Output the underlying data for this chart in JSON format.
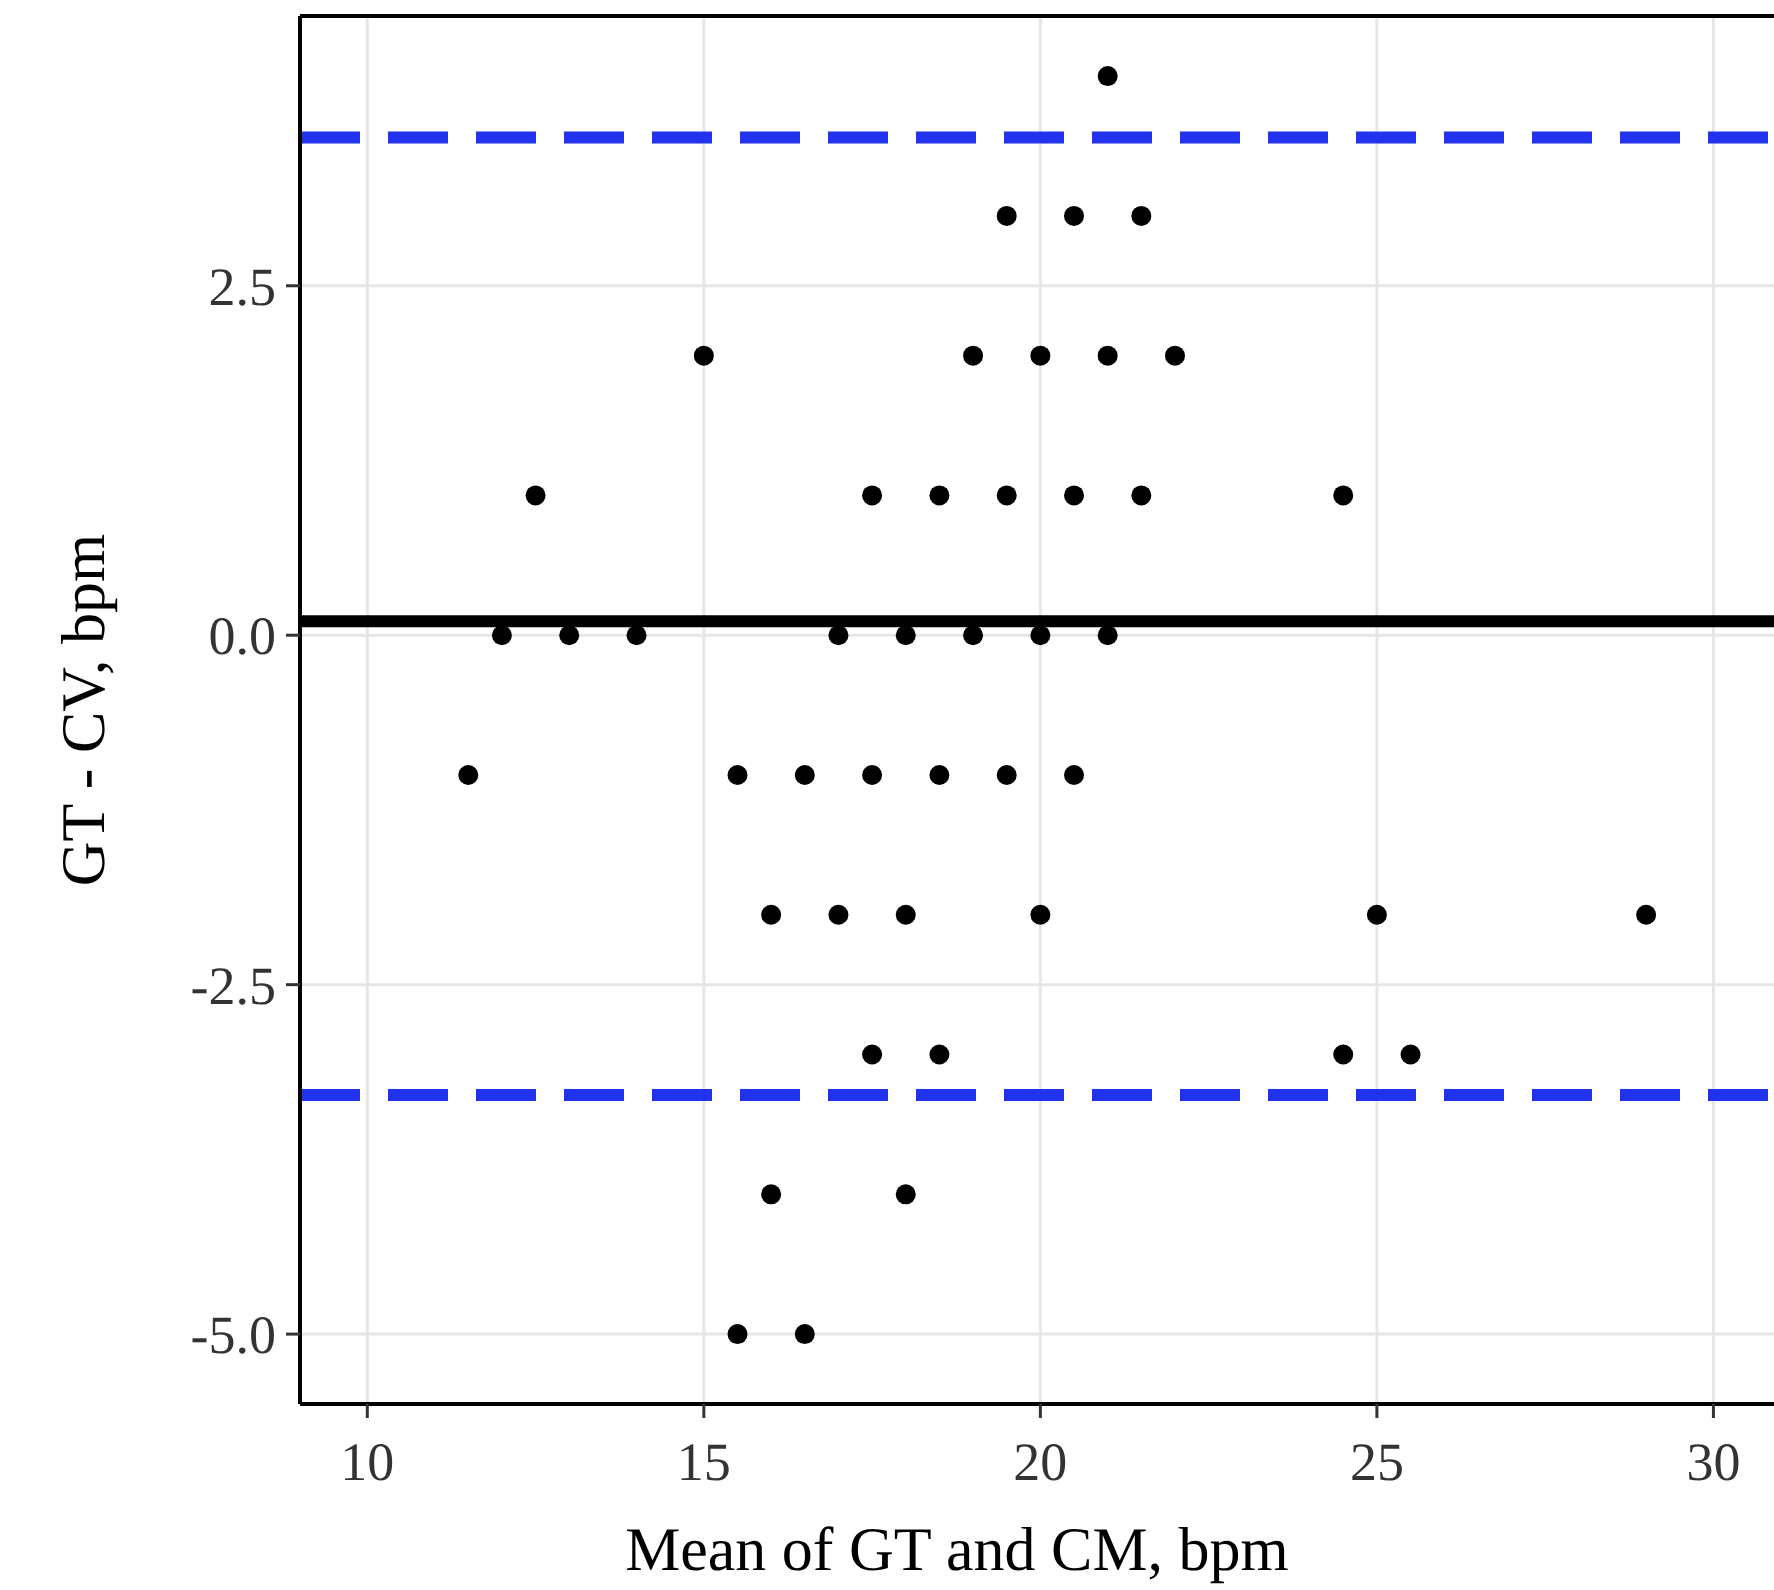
{
  "chart_data": {
    "type": "scatter",
    "xlabel": "Mean of GT and CM, bpm",
    "ylabel": "GT - CV, bpm",
    "xlim": [
      9,
      30.9
    ],
    "ylim": [
      -5.5,
      4.43
    ],
    "xticks": [
      10,
      15,
      20,
      25,
      30
    ],
    "yticks": [
      {
        "value": -5,
        "label": "-5.0"
      },
      {
        "value": -2.5,
        "label": "-2.5"
      },
      {
        "value": 0,
        "label": "0.0"
      },
      {
        "value": 2.5,
        "label": "2.5"
      }
    ],
    "grid": true,
    "marker": "circle",
    "series": [
      {
        "color": "#000000",
        "x": [
          21,
          19.5,
          20.5,
          21.5,
          15,
          19,
          20,
          21,
          22,
          12.5,
          17.5,
          18.5,
          19.5,
          20.5,
          21.5,
          24.5,
          12,
          13,
          14,
          17,
          18,
          19,
          20,
          21,
          11.5,
          15.5,
          16.5,
          17.5,
          18.5,
          19.5,
          20.5,
          16,
          17,
          18,
          20,
          25,
          29,
          17.5,
          18.5,
          24.5,
          25.5,
          16,
          18,
          15.5,
          16.5
        ],
        "values": [
          4,
          3,
          3,
          3,
          2,
          2,
          2,
          2,
          2,
          1,
          1,
          1,
          1,
          1,
          1,
          1,
          0,
          0,
          0,
          0,
          0,
          0,
          0,
          0,
          -1,
          -1,
          -1,
          -1,
          -1,
          -1,
          -1,
          -2,
          -2,
          -2,
          -2,
          -2,
          -2,
          -3,
          -3,
          -3,
          -3,
          -4,
          -4,
          -5,
          -5
        ]
      }
    ],
    "ref_lines": [
      {
        "axis": "y",
        "value": 0.1,
        "color": "#000000",
        "line_style": "solid"
      },
      {
        "axis": "y",
        "value": 3.56,
        "color": "#2233ee",
        "line_style": "dashed"
      },
      {
        "axis": "y",
        "value": -3.29,
        "color": "#2233ee",
        "line_style": "dashed"
      }
    ]
  }
}
